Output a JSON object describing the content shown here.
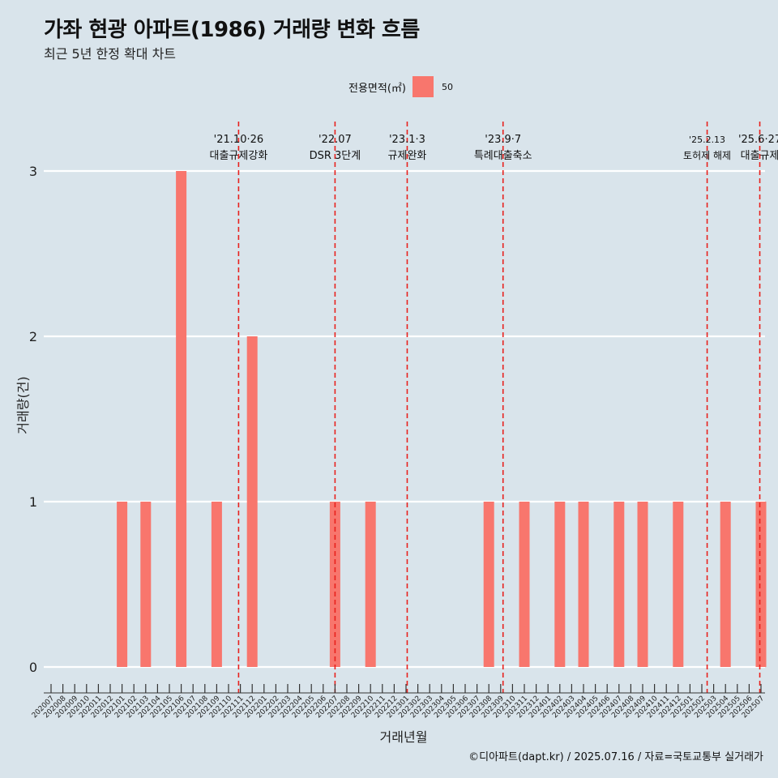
{
  "title": "가좌 현광 아파트(1986) 거래량 변화 흐름",
  "subtitle": "최근 5년 한정 확대 차트",
  "legend": {
    "title": "전용면적(㎡)",
    "label": "50",
    "color": "#f8766d"
  },
  "caption": "©디아파트(dapt.kr) / 2025.07.16 / 자료=국토교통부 실거래가",
  "chart_data": {
    "type": "bar",
    "xlabel": "거래년월",
    "ylabel": "거래량(건)",
    "ylim": [
      0,
      3
    ],
    "yticks": [
      0,
      1,
      2,
      3
    ],
    "grid": true,
    "legend_position": "top",
    "categories": [
      "202007",
      "202008",
      "202009",
      "202010",
      "202011",
      "202012",
      "202101",
      "202102",
      "202103",
      "202104",
      "202105",
      "202106",
      "202107",
      "202108",
      "202109",
      "202110",
      "202111",
      "202112",
      "202201",
      "202202",
      "202203",
      "202204",
      "202205",
      "202206",
      "202207",
      "202208",
      "202209",
      "202210",
      "202211",
      "202212",
      "202301",
      "202302",
      "202303",
      "202304",
      "202305",
      "202306",
      "202307",
      "202308",
      "202309",
      "202310",
      "202311",
      "202312",
      "202401",
      "202402",
      "202403",
      "202404",
      "202405",
      "202406",
      "202407",
      "202408",
      "202409",
      "202410",
      "202411",
      "202412",
      "202501",
      "202502",
      "202503",
      "202504",
      "202505",
      "202506",
      "202507"
    ],
    "series": [
      {
        "name": "50",
        "color": "#f8766d",
        "values": [
          0,
          0,
          0,
          0,
          0,
          0,
          1,
          0,
          1,
          0,
          0,
          3,
          0,
          0,
          1,
          0,
          0,
          2,
          0,
          0,
          0,
          0,
          0,
          0,
          1,
          0,
          0,
          1,
          0,
          0,
          0,
          0,
          0,
          0,
          0,
          0,
          0,
          1,
          0,
          0,
          1,
          0,
          0,
          1,
          0,
          1,
          0,
          0,
          1,
          0,
          1,
          0,
          0,
          1,
          0,
          0,
          0,
          1,
          0,
          0,
          1
        ]
      }
    ],
    "events": [
      {
        "date": "'21.10·26",
        "label": "대출규제강화",
        "x_month": "202110",
        "x_offset": 0.85
      },
      {
        "date": "'22.07",
        "label": "DSR 3단계",
        "x_month": "202207",
        "x_offset": 0
      },
      {
        "date": "'23.1·3",
        "label": "규제완화",
        "x_month": "202301",
        "x_offset": 0.1
      },
      {
        "date": "'23.9·7",
        "label": "특례대출축소",
        "x_month": "202309",
        "x_offset": 0.2
      },
      {
        "date": "'25.2.13",
        "label": "토허제 해제",
        "x_month": "202502",
        "x_offset": 0.45
      },
      {
        "date": "'25.6·27",
        "label": "대출규제",
        "x_month": "202506",
        "x_offset": 0.9
      }
    ]
  }
}
